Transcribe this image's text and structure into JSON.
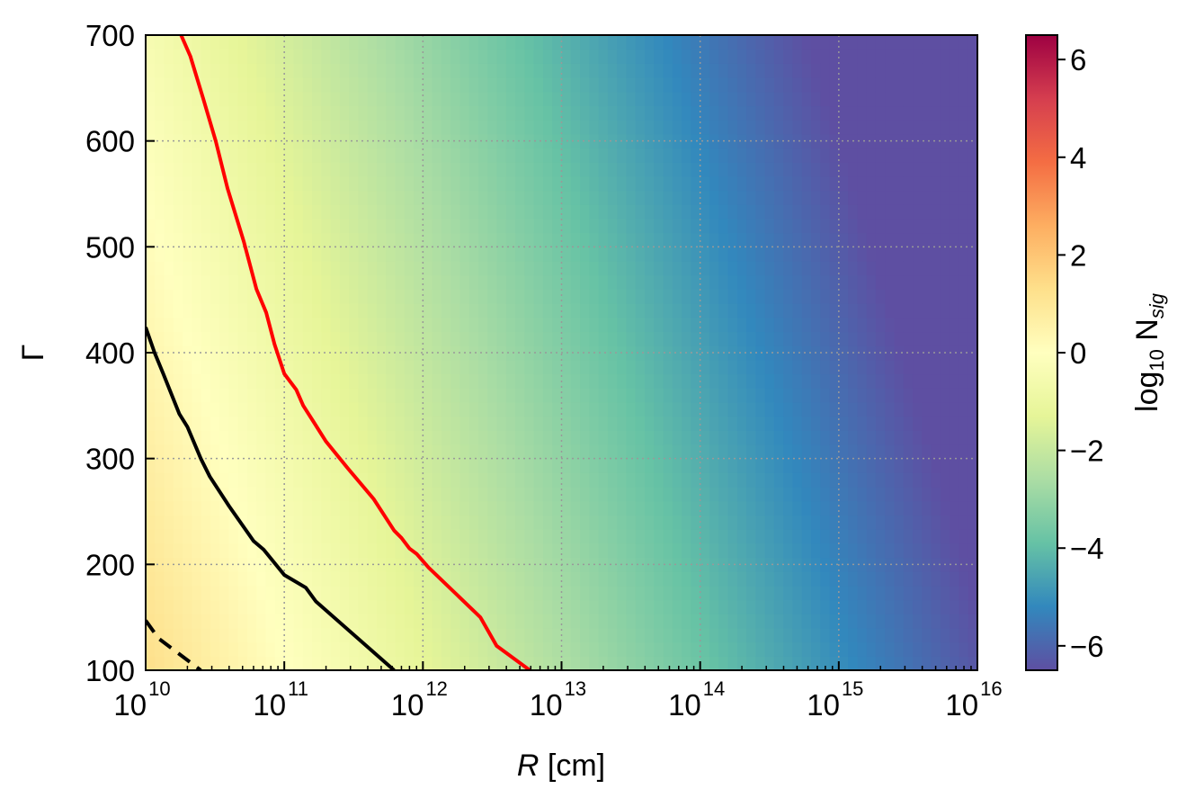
{
  "chart_data": {
    "type": "heatmap",
    "title": "",
    "xlabel": {
      "italic": "R",
      "rest": " [cm]"
    },
    "ylabel": "Γ",
    "x_scale": "log",
    "x_range_cm": [
      10000000000.0,
      1e+16
    ],
    "x_tick_base": "10",
    "x_tick_exponents": [
      "10",
      "11",
      "12",
      "13",
      "14",
      "15",
      "16"
    ],
    "ylim": [
      100,
      700
    ],
    "y_ticks": [
      "100",
      "200",
      "300",
      "400",
      "500",
      "600",
      "700"
    ],
    "grid": true,
    "colorbar": {
      "label": {
        "prefix": "log",
        "subscript": "10",
        "middle": " N",
        "italic_sub": "sig"
      },
      "range": [
        -6.5,
        6.5
      ],
      "ticks": [
        "−6",
        "−4",
        "−2",
        "0",
        "2",
        "4",
        "6"
      ],
      "tick_values": [
        -6,
        -4,
        -2,
        0,
        2,
        4,
        6
      ],
      "colormap": "Spectral_r",
      "colors": [
        "#5e4fa2",
        "#3288bd",
        "#66c2a5",
        "#abdda4",
        "#e6f598",
        "#ffffbf",
        "#fee08b",
        "#fdae61",
        "#f46d43",
        "#d53e4f",
        "#9e0142"
      ]
    },
    "heatmap_model": "log10 N_sig ≈ 1.3 − 1.27·(log10 R − 10) − 0.0029·(Γ − 100)",
    "contours": [
      {
        "color": "#ff0000",
        "style": "solid",
        "points": [
          [
            18000000000.0,
            700
          ],
          [
            21000000000.0,
            680
          ],
          [
            26000000000.0,
            640
          ],
          [
            32000000000.0,
            600
          ],
          [
            39000000000.0,
            555
          ],
          [
            51000000000.0,
            505
          ],
          [
            63000000000.0,
            460
          ],
          [
            74000000000.0,
            438
          ],
          [
            85000000000.0,
            408
          ],
          [
            100000000000.0,
            380
          ],
          [
            122000000000.0,
            365
          ],
          [
            137000000000.0,
            350
          ],
          [
            162000000000.0,
            335
          ],
          [
            200000000000.0,
            316
          ],
          [
            290000000000.0,
            290
          ],
          [
            440000000000.0,
            262
          ],
          [
            620000000000.0,
            232
          ],
          [
            700000000000.0,
            225
          ],
          [
            800000000000.0,
            215
          ],
          [
            900000000000.0,
            210
          ],
          [
            1100000000000.0,
            197
          ],
          [
            2600000000000.0,
            150
          ],
          [
            3400000000000.0,
            123
          ],
          [
            5900000000000.0,
            100
          ]
        ]
      },
      {
        "color": "#000000",
        "style": "solid",
        "points": [
          [
            10000000000.0,
            424
          ],
          [
            11600000000.0,
            400
          ],
          [
            13400000000.0,
            380
          ],
          [
            17500000000.0,
            342
          ],
          [
            20000000000.0,
            330
          ],
          [
            25000000000.0,
            300
          ],
          [
            29000000000.0,
            283
          ],
          [
            40000000000.0,
            255
          ],
          [
            60000000000.0,
            222
          ],
          [
            71000000000.0,
            214
          ],
          [
            100000000000.0,
            190
          ],
          [
            143000000000.0,
            178
          ],
          [
            169000000000.0,
            165
          ],
          [
            620000000000.0,
            100
          ]
        ]
      },
      {
        "color": "#000000",
        "style": "dashed",
        "points": [
          [
            10000000000.0,
            147
          ],
          [
            12400000000.0,
            130
          ],
          [
            25000000000.0,
            100
          ]
        ]
      }
    ]
  }
}
